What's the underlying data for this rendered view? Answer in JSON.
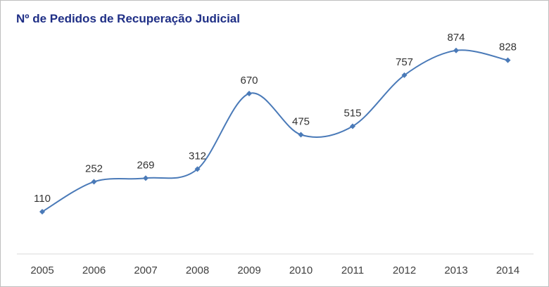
{
  "chart_data": {
    "type": "line",
    "title": "Nº de Pedidos de Recuperação Judicial",
    "xlabel": "",
    "ylabel": "",
    "categories": [
      "2005",
      "2006",
      "2007",
      "2008",
      "2009",
      "2010",
      "2011",
      "2012",
      "2013",
      "2014"
    ],
    "series": [
      {
        "values": [
          110,
          252,
          269,
          312,
          670,
          475,
          515,
          757,
          874,
          828
        ],
        "color": "#4a7ab8",
        "marker": "diamond",
        "smooth": true,
        "data_labels": true
      }
    ],
    "ylim": [
      0,
      1000
    ],
    "grid": false,
    "legend": "none"
  }
}
